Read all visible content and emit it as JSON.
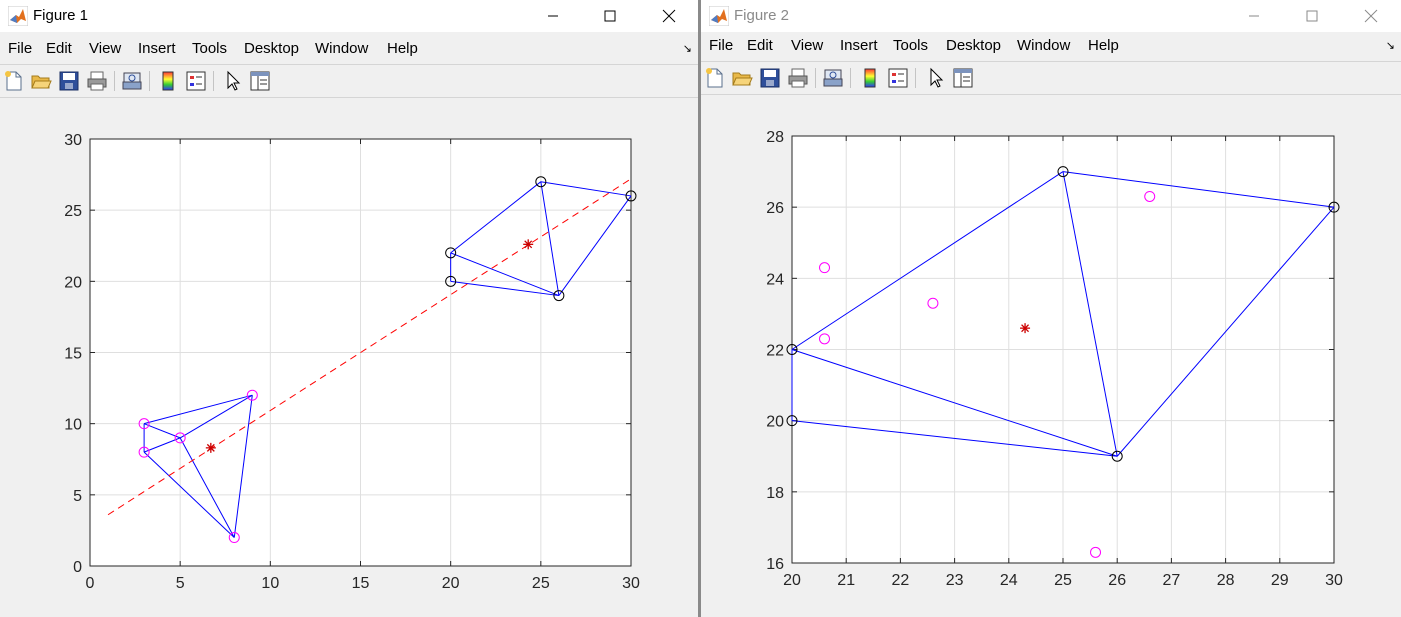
{
  "windows": [
    {
      "title": "Figure 1",
      "menu": [
        "File",
        "Edit",
        "View",
        "Insert",
        "Tools",
        "Desktop",
        "Window",
        "Help"
      ],
      "chart_data": {
        "type": "scatter",
        "title": "",
        "xlabel": "",
        "ylabel": "",
        "xlim": [
          0,
          30
        ],
        "ylim": [
          0,
          30
        ],
        "xticks": [
          "0",
          "5",
          "10",
          "15",
          "20",
          "25",
          "30"
        ],
        "yticks": [
          "0",
          "5",
          "10",
          "15",
          "20",
          "25",
          "30"
        ],
        "grid": true,
        "series": [
          {
            "marker": "circle",
            "color": "#ff00ff",
            "x": [
              3,
              3,
              5,
              8,
              9
            ],
            "y": [
              10,
              8,
              9,
              2,
              12
            ]
          },
          {
            "marker": "circle",
            "color": "#000000",
            "x": [
              20,
              20,
              25,
              26,
              30
            ],
            "y": [
              22,
              20,
              27,
              19,
              26
            ]
          },
          {
            "marker": "star",
            "color": "#cc0000",
            "x": [
              6.7,
              24.3
            ],
            "y": [
              8.3,
              22.6
            ]
          }
        ],
        "lines": [
          {
            "style": "solid",
            "color": "#0000ff",
            "x": [
              3,
              3
            ],
            "y": [
              10,
              8
            ]
          },
          {
            "style": "solid",
            "color": "#0000ff",
            "x": [
              3,
              5
            ],
            "y": [
              10,
              9
            ]
          },
          {
            "style": "solid",
            "color": "#0000ff",
            "x": [
              3,
              9
            ],
            "y": [
              10,
              12
            ]
          },
          {
            "style": "solid",
            "color": "#0000ff",
            "x": [
              3,
              5
            ],
            "y": [
              8,
              9
            ]
          },
          {
            "style": "solid",
            "color": "#0000ff",
            "x": [
              3,
              8
            ],
            "y": [
              8,
              2
            ]
          },
          {
            "style": "solid",
            "color": "#0000ff",
            "x": [
              5,
              9
            ],
            "y": [
              9,
              12
            ]
          },
          {
            "style": "solid",
            "color": "#0000ff",
            "x": [
              5,
              8
            ],
            "y": [
              9,
              2
            ]
          },
          {
            "style": "solid",
            "color": "#0000ff",
            "x": [
              8,
              9
            ],
            "y": [
              2,
              12
            ]
          },
          {
            "style": "solid",
            "color": "#0000ff",
            "x": [
              20,
              20
            ],
            "y": [
              22,
              20
            ]
          },
          {
            "style": "solid",
            "color": "#0000ff",
            "x": [
              20,
              25
            ],
            "y": [
              22,
              27
            ]
          },
          {
            "style": "solid",
            "color": "#0000ff",
            "x": [
              20,
              26
            ],
            "y": [
              22,
              19
            ]
          },
          {
            "style": "solid",
            "color": "#0000ff",
            "x": [
              20,
              26
            ],
            "y": [
              20,
              19
            ]
          },
          {
            "style": "solid",
            "color": "#0000ff",
            "x": [
              25,
              30
            ],
            "y": [
              27,
              26
            ]
          },
          {
            "style": "solid",
            "color": "#0000ff",
            "x": [
              25,
              26
            ],
            "y": [
              27,
              19
            ]
          },
          {
            "style": "solid",
            "color": "#0000ff",
            "x": [
              26,
              30
            ],
            "y": [
              19,
              26
            ]
          },
          {
            "style": "dashed",
            "color": "#ff0000",
            "x": [
              1,
              30
            ],
            "y": [
              3.6,
              27.2
            ]
          }
        ]
      }
    },
    {
      "title": "Figure 2",
      "menu": [
        "File",
        "Edit",
        "View",
        "Insert",
        "Tools",
        "Desktop",
        "Window",
        "Help"
      ],
      "chart_data": {
        "type": "scatter",
        "title": "",
        "xlabel": "",
        "ylabel": "",
        "xlim": [
          20,
          30
        ],
        "ylim": [
          16,
          28
        ],
        "xticks": [
          "20",
          "21",
          "22",
          "23",
          "24",
          "25",
          "26",
          "27",
          "28",
          "29",
          "30"
        ],
        "yticks": [
          "16",
          "18",
          "20",
          "22",
          "24",
          "26",
          "28"
        ],
        "grid": true,
        "series": [
          {
            "marker": "circle",
            "color": "#ff00ff",
            "x": [
              20.6,
              20.6,
              22.6,
              26.6,
              25.6
            ],
            "y": [
              24.3,
              22.3,
              23.3,
              26.3,
              16.3
            ]
          },
          {
            "marker": "circle",
            "color": "#000000",
            "x": [
              20,
              20,
              25,
              26,
              30
            ],
            "y": [
              22,
              20,
              27,
              19,
              26
            ]
          },
          {
            "marker": "star",
            "color": "#cc0000",
            "x": [
              24.3
            ],
            "y": [
              22.6
            ]
          }
        ],
        "lines": [
          {
            "style": "solid",
            "color": "#0000ff",
            "x": [
              20,
              20
            ],
            "y": [
              22,
              20
            ]
          },
          {
            "style": "solid",
            "color": "#0000ff",
            "x": [
              20,
              25
            ],
            "y": [
              22,
              27
            ]
          },
          {
            "style": "solid",
            "color": "#0000ff",
            "x": [
              20,
              26
            ],
            "y": [
              22,
              19
            ]
          },
          {
            "style": "solid",
            "color": "#0000ff",
            "x": [
              20,
              26
            ],
            "y": [
              20,
              19
            ]
          },
          {
            "style": "solid",
            "color": "#0000ff",
            "x": [
              25,
              30
            ],
            "y": [
              27,
              26
            ]
          },
          {
            "style": "solid",
            "color": "#0000ff",
            "x": [
              25,
              26
            ],
            "y": [
              27,
              19
            ]
          },
          {
            "style": "solid",
            "color": "#0000ff",
            "x": [
              26,
              30
            ],
            "y": [
              19,
              26
            ]
          }
        ]
      }
    }
  ]
}
